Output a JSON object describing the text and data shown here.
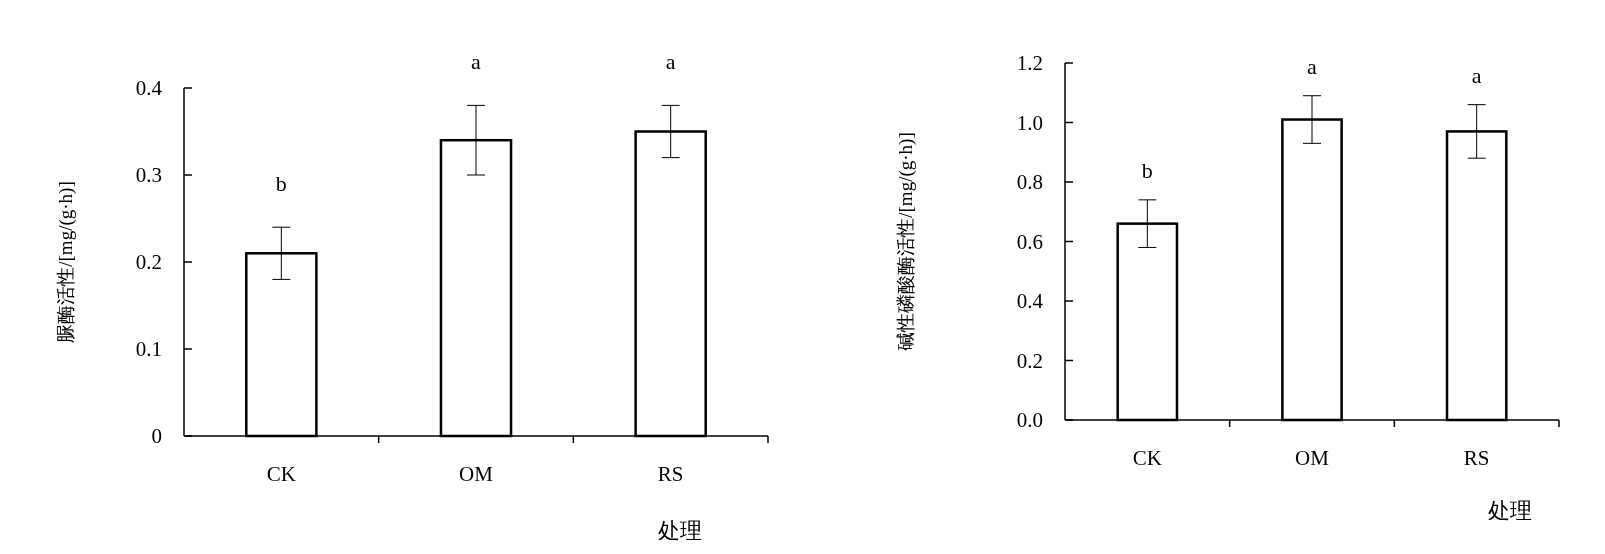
{
  "chart_data": [
    {
      "type": "bar",
      "categories": [
        "CK",
        "OM",
        "RS"
      ],
      "values": [
        0.21,
        0.34,
        0.35
      ],
      "errors": [
        0.03,
        0.04,
        0.03
      ],
      "color": "#ffffff",
      "ylabel": "脲酶活性/[mg/(g·h)]",
      "xlabel": "处理",
      "ylim": [
        0,
        0.4
      ],
      "yticks": [
        {
          "value": 0,
          "label": "0"
        },
        0.1,
        0.2,
        0.3,
        0.4
      ],
      "annotations": [
        "b",
        "a",
        "a"
      ]
    },
    {
      "type": "bar",
      "categories": [
        "CK",
        "OM",
        "RS"
      ],
      "values": [
        0.66,
        1.01,
        0.97
      ],
      "errors": [
        0.08,
        0.08,
        0.09
      ],
      "color": "#ffffff",
      "ylabel": "碱性磷酸酶活性/[mg/(g·h)]",
      "xlabel": "处理",
      "ylim": [
        0,
        1.2
      ],
      "yticks": [
        {
          "value": 0,
          "label": "0.0"
        },
        0.2,
        0.4,
        0.6,
        0.8,
        {
          "value": 1,
          "label": "1.0"
        },
        {
          "value": 1.2,
          "label": "1.2"
        }
      ],
      "annotations": [
        "b",
        "a",
        "a"
      ]
    }
  ]
}
